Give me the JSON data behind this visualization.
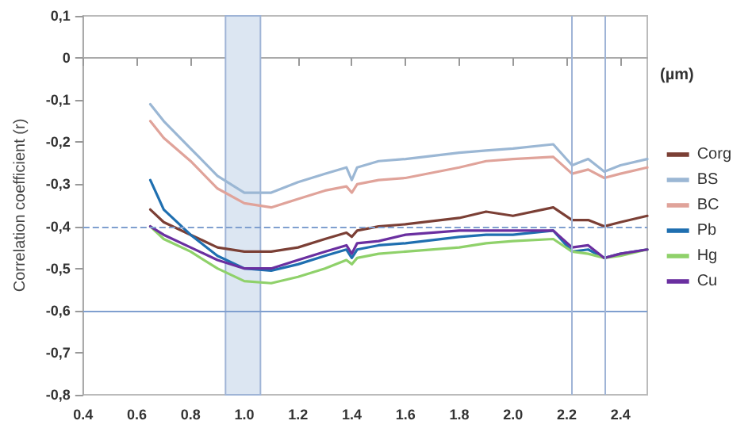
{
  "chart_data": {
    "type": "line",
    "xlabel": "(µm)",
    "ylabel": "Correlation coefficient (r)",
    "x": [
      0.65,
      0.7,
      0.8,
      0.9,
      1.0,
      1.1,
      1.2,
      1.3,
      1.38,
      1.4,
      1.42,
      1.5,
      1.6,
      1.8,
      1.9,
      2.0,
      2.15,
      2.22,
      2.28,
      2.34,
      2.4,
      2.5
    ],
    "series": [
      {
        "name": "Corg",
        "color": "#7b3f35",
        "values": [
          -0.36,
          -0.39,
          -0.42,
          -0.45,
          -0.46,
          -0.46,
          -0.45,
          -0.43,
          -0.415,
          -0.425,
          -0.41,
          -0.4,
          -0.395,
          -0.38,
          -0.365,
          -0.375,
          -0.355,
          -0.385,
          -0.385,
          -0.4,
          -0.39,
          -0.375
        ]
      },
      {
        "name": "BS",
        "color": "#9bb7d4",
        "values": [
          -0.11,
          -0.15,
          -0.215,
          -0.28,
          -0.32,
          -0.32,
          -0.295,
          -0.275,
          -0.26,
          -0.29,
          -0.26,
          -0.245,
          -0.24,
          -0.225,
          -0.22,
          -0.215,
          -0.205,
          -0.255,
          -0.24,
          -0.27,
          -0.255,
          -0.24
        ]
      },
      {
        "name": "BC",
        "color": "#e0a39a",
        "values": [
          -0.15,
          -0.19,
          -0.245,
          -0.31,
          -0.345,
          -0.355,
          -0.335,
          -0.315,
          -0.305,
          -0.32,
          -0.3,
          -0.29,
          -0.285,
          -0.26,
          -0.245,
          -0.24,
          -0.235,
          -0.275,
          -0.265,
          -0.285,
          -0.275,
          -0.26
        ]
      },
      {
        "name": "Pb",
        "color": "#1f6fb0",
        "values": [
          -0.29,
          -0.36,
          -0.42,
          -0.47,
          -0.5,
          -0.505,
          -0.49,
          -0.47,
          -0.455,
          -0.475,
          -0.455,
          -0.445,
          -0.44,
          -0.425,
          -0.42,
          -0.42,
          -0.41,
          -0.46,
          -0.455,
          -0.475,
          -0.465,
          -0.455
        ]
      },
      {
        "name": "Hg",
        "color": "#8fd16a",
        "values": [
          -0.4,
          -0.43,
          -0.46,
          -0.5,
          -0.53,
          -0.535,
          -0.52,
          -0.5,
          -0.48,
          -0.49,
          -0.475,
          -0.465,
          -0.46,
          -0.45,
          -0.44,
          -0.435,
          -0.43,
          -0.46,
          -0.465,
          -0.475,
          -0.47,
          -0.455
        ]
      },
      {
        "name": "Cu",
        "color": "#6a2fa0",
        "values": [
          -0.4,
          -0.42,
          -0.45,
          -0.48,
          -0.5,
          -0.5,
          -0.48,
          -0.46,
          -0.445,
          -0.465,
          -0.44,
          -0.435,
          -0.42,
          -0.41,
          -0.41,
          -0.41,
          -0.41,
          -0.45,
          -0.445,
          -0.475,
          -0.465,
          -0.455
        ]
      }
    ],
    "xlim": [
      0.4,
      2.5
    ],
    "xticks": [
      {
        "value": 0.4,
        "label": "0.4"
      },
      {
        "value": 0.6,
        "label": "0.6"
      },
      {
        "value": 0.8,
        "label": "0.8"
      },
      {
        "value": 1.0,
        "label": "1.0"
      },
      {
        "value": 1.2,
        "label": "1.2"
      },
      {
        "value": 1.4,
        "label": "1.4"
      },
      {
        "value": 1.6,
        "label": "1.6"
      },
      {
        "value": 1.8,
        "label": "1.8"
      },
      {
        "value": 2.0,
        "label": "2.0"
      },
      {
        "value": 2.2,
        "label": "2.2"
      },
      {
        "value": 2.4,
        "label": "2.4"
      }
    ],
    "ylim": [
      -0.8,
      0.1
    ],
    "yticks": [
      {
        "value": -0.8,
        "label": "-0,8"
      },
      {
        "value": -0.7,
        "label": "-0,7"
      },
      {
        "value": -0.6,
        "label": "-0,6"
      },
      {
        "value": -0.5,
        "label": "-0,5"
      },
      {
        "value": -0.4,
        "label": "-0,4"
      },
      {
        "value": -0.3,
        "label": "-0,3"
      },
      {
        "value": -0.2,
        "label": "-0,2"
      },
      {
        "value": -0.1,
        "label": "-0,1"
      },
      0,
      {
        "value": 0.1,
        "label": "0,1"
      }
    ],
    "ref_lines": [
      {
        "axis": "y",
        "value": -0.4,
        "color": "#7f9fcf",
        "line_style": "dashed"
      },
      {
        "axis": "y",
        "value": -0.6,
        "color": "#7f9fcf",
        "line_style": "solid"
      },
      {
        "axis": "x",
        "value": 2.22,
        "color": "#9fb4d6",
        "line_style": "solid"
      },
      {
        "axis": "x",
        "value": 2.34,
        "color": "#9fb4d6",
        "line_style": "solid"
      }
    ],
    "bands": [
      {
        "axis": "x",
        "from": 0.93,
        "to": 1.06,
        "color": "#dce6f2"
      }
    ],
    "legend": "right",
    "grid": false,
    "marker": "none",
    "line_style": "solid"
  }
}
